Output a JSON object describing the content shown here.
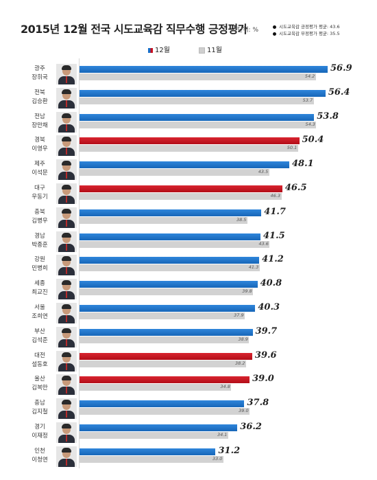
{
  "header": {
    "title": "2015년 12월 전국 시도교육감 직무수행 긍정평가",
    "unit": "단위: %",
    "notes": [
      "시도교육감 긍정평가 평균: 43.6",
      "시도교육감 부정평가 평균: 35.5"
    ]
  },
  "legend": {
    "dec_label": "12월",
    "nov_label": "11월"
  },
  "colors": {
    "blue": "#1a6fc9",
    "red": "#c8101e",
    "gray": "#d2d2d2"
  },
  "chart_data": {
    "type": "bar",
    "orientation": "horizontal",
    "title": "2015년 12월 전국 시도교육감 직무수행 긍정평가",
    "unit": "단위: %",
    "legend_position": "top-left",
    "series_names": [
      "12월",
      "11월"
    ],
    "rows": [
      {
        "region": "광주",
        "name": "장휘국",
        "dec": 56.9,
        "nov": 54.2,
        "dec_color": "blue"
      },
      {
        "region": "전북",
        "name": "김승환",
        "dec": 56.4,
        "nov": 53.7,
        "dec_color": "blue"
      },
      {
        "region": "전남",
        "name": "장만채",
        "dec": 53.8,
        "nov": 54.3,
        "dec_color": "blue"
      },
      {
        "region": "경북",
        "name": "이영우",
        "dec": 50.4,
        "nov": 50.1,
        "dec_color": "red"
      },
      {
        "region": "제주",
        "name": "이석문",
        "dec": 48.1,
        "nov": 43.5,
        "dec_color": "blue"
      },
      {
        "region": "대구",
        "name": "우동기",
        "dec": 46.5,
        "nov": 46.3,
        "dec_color": "red"
      },
      {
        "region": "충북",
        "name": "김병우",
        "dec": 41.7,
        "nov": 38.5,
        "dec_color": "blue"
      },
      {
        "region": "경남",
        "name": "박종훈",
        "dec": 41.5,
        "nov": 43.6,
        "dec_color": "blue"
      },
      {
        "region": "강원",
        "name": "민병희",
        "dec": 41.2,
        "nov": 41.3,
        "dec_color": "blue"
      },
      {
        "region": "세종",
        "name": "최교진",
        "dec": 40.8,
        "nov": 39.8,
        "dec_color": "blue"
      },
      {
        "region": "서울",
        "name": "조희연",
        "dec": 40.3,
        "nov": 37.9,
        "dec_color": "blue"
      },
      {
        "region": "부산",
        "name": "김석준",
        "dec": 39.7,
        "nov": 38.9,
        "dec_color": "blue"
      },
      {
        "region": "대전",
        "name": "설동호",
        "dec": 39.6,
        "nov": 38.2,
        "dec_color": "red"
      },
      {
        "region": "울산",
        "name": "김복만",
        "dec": 39.0,
        "nov": 34.8,
        "dec_color": "red"
      },
      {
        "region": "충남",
        "name": "김지철",
        "dec": 37.8,
        "nov": 39.0,
        "dec_color": "blue"
      },
      {
        "region": "경기",
        "name": "이재정",
        "dec": 36.2,
        "nov": 34.1,
        "dec_color": "blue"
      },
      {
        "region": "인천",
        "name": "이청연",
        "dec": 31.2,
        "nov": 33.0,
        "dec_color": "blue"
      }
    ]
  }
}
